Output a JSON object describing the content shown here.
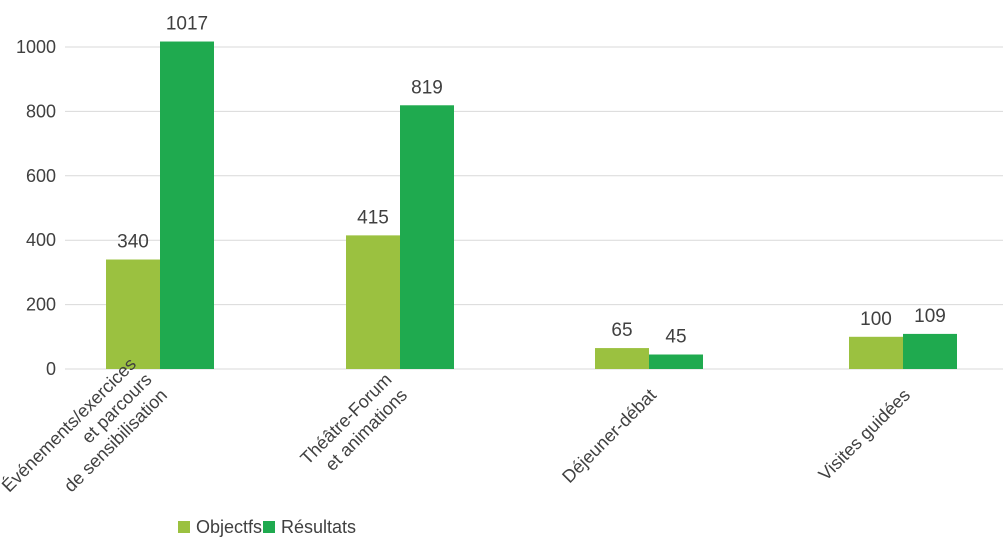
{
  "chart_data": {
    "type": "bar",
    "categories": [
      [
        "Événements/exercices",
        "et parcours",
        "de sensibilisation"
      ],
      [
        "Théâtre-Forum",
        "et animations"
      ],
      [
        "Déjeuner-débat"
      ],
      [
        "Visites guidées"
      ]
    ],
    "series": [
      {
        "name": "Objectfs",
        "values": [
          340,
          415,
          65,
          100
        ],
        "color": "#9bc140"
      },
      {
        "name": "Résultats",
        "values": [
          1017,
          819,
          45,
          109
        ],
        "color": "#1faa4f"
      }
    ],
    "ylim": [
      0,
      1000
    ],
    "yticks": [
      0,
      200,
      400,
      600,
      800,
      1000
    ],
    "grid": true,
    "legend_position": "bottom",
    "title": "",
    "xlabel": "",
    "ylabel": ""
  }
}
